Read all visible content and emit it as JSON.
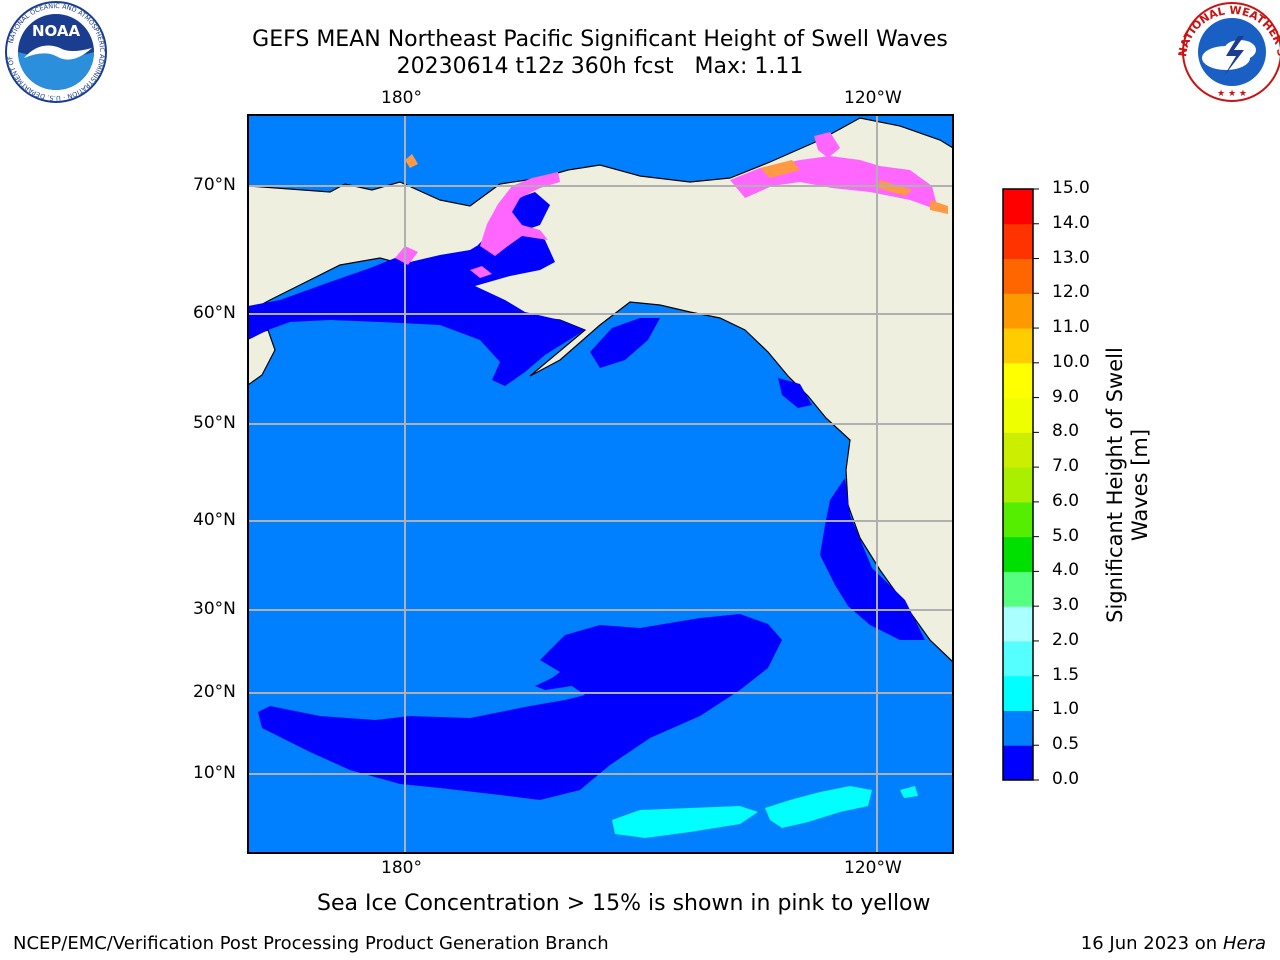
{
  "header": {
    "title_line1": "GEFS MEAN Northeast Pacific Significant Height of Swell Waves",
    "title_line2": "20230614 t12z 360h fcst   Max: 1.11"
  },
  "logos": {
    "left": {
      "name": "noaa-logo",
      "text": "NOAA",
      "ring_text": "NATIONAL OCEANIC AND ATMOSPHERIC ADMINISTRATION · U.S. DEPARTMENT OF COMMERCE"
    },
    "right": {
      "name": "nws-logo",
      "ring_text": "NATIONAL WEATHER SERVICE"
    }
  },
  "map": {
    "lon_labels_top": [
      "180°",
      "120°W"
    ],
    "lon_labels_bottom": [
      "180°",
      "120°W"
    ],
    "lat_labels": [
      "70°N",
      "60°N",
      "50°N",
      "40°N",
      "30°N",
      "20°N",
      "10°N"
    ],
    "colors": {
      "ocean": "#0080ff",
      "low_swell": "#0000ff",
      "moderate_swell": "#00ffff",
      "land": "#efefdf",
      "sea_ice": "#ff66ff",
      "grid": "#b0b0b0"
    }
  },
  "colorbar": {
    "label": "Significant Height of Swell Waves [m]",
    "ticks": [
      "0.0",
      "0.5",
      "1.0",
      "1.5",
      "2.0",
      "3.0",
      "4.0",
      "5.0",
      "6.0",
      "7.0",
      "8.0",
      "9.0",
      "10.0",
      "11.0",
      "12.0",
      "13.0",
      "14.0",
      "15.0"
    ],
    "colors": [
      "#0000ff",
      "#0080ff",
      "#00ffff",
      "#55ffff",
      "#aaffff",
      "#55ff80",
      "#00e000",
      "#55ee00",
      "#aaee00",
      "#ccee00",
      "#eeff00",
      "#ffff00",
      "#ffcc00",
      "#ff9900",
      "#ff6600",
      "#ff3300",
      "#ff0000"
    ]
  },
  "footer": {
    "note": "Sea Ice Concentration > 15% is shown in pink to yellow",
    "credit": "NCEP/EMC/Verification Post Processing Product Generation Branch",
    "date": "16 Jun 2023 on",
    "machine": "Hera"
  }
}
